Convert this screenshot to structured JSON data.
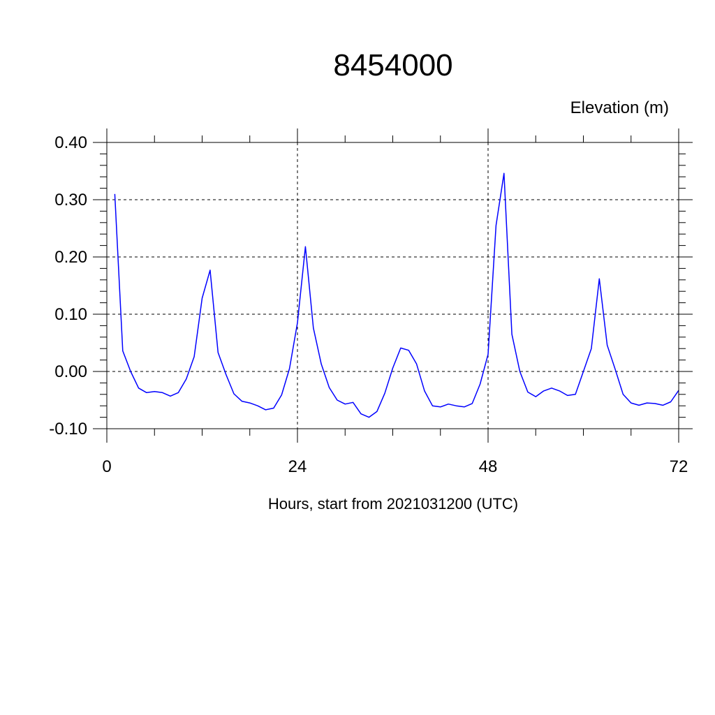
{
  "chart_data": {
    "type": "line",
    "title": "8454000",
    "ylabel": "Elevation (m)",
    "xlabel": "Hours, start from 2021031200 (UTC)",
    "xlim": [
      0,
      72
    ],
    "ylim": [
      -0.1,
      0.4
    ],
    "x_ticks": [
      0,
      24,
      48,
      72
    ],
    "x_tick_labels": [
      "0",
      "24",
      "48",
      "72"
    ],
    "y_ticks": [
      -0.1,
      0.0,
      0.1,
      0.2,
      0.3,
      0.4
    ],
    "y_tick_labels": [
      "-0.10",
      "0.00",
      "0.10",
      "0.20",
      "0.30",
      "0.40"
    ],
    "grid": true,
    "line_color": "#0000ff",
    "series": [
      {
        "x": [
          1,
          2,
          3,
          4,
          5,
          6,
          7,
          8,
          9,
          10,
          11,
          12,
          13,
          14,
          15,
          16,
          17,
          18,
          19,
          20,
          21,
          22,
          23,
          24,
          25,
          26,
          27,
          28,
          29,
          30,
          31,
          32,
          33,
          34,
          35,
          36,
          37,
          38,
          39,
          40,
          41,
          42,
          43,
          44,
          45,
          46,
          47,
          48,
          49,
          50,
          51,
          52,
          53,
          54,
          55,
          56,
          57,
          58,
          59,
          60,
          61,
          62,
          63,
          64,
          65,
          66,
          67,
          68,
          69,
          70,
          71,
          72
        ],
        "values": [
          0.31,
          0.036,
          0.0,
          -0.029,
          -0.037,
          -0.035,
          -0.037,
          -0.043,
          -0.037,
          -0.013,
          0.026,
          0.128,
          0.177,
          0.033,
          -0.005,
          -0.039,
          -0.052,
          -0.055,
          -0.06,
          -0.067,
          -0.064,
          -0.041,
          0.005,
          0.085,
          0.218,
          0.076,
          0.013,
          -0.028,
          -0.05,
          -0.057,
          -0.054,
          -0.074,
          -0.08,
          -0.07,
          -0.038,
          0.006,
          0.041,
          0.037,
          0.013,
          -0.034,
          -0.06,
          -0.062,
          -0.057,
          -0.06,
          -0.062,
          -0.056,
          -0.022,
          0.03,
          0.255,
          0.346,
          0.065,
          0.0,
          -0.036,
          -0.044,
          -0.034,
          -0.029,
          -0.034,
          -0.042,
          -0.04,
          0.0,
          0.04,
          0.162,
          0.046,
          0.004,
          -0.04,
          -0.055,
          -0.059,
          -0.055,
          -0.056,
          -0.059,
          -0.053,
          -0.033
        ]
      }
    ]
  }
}
